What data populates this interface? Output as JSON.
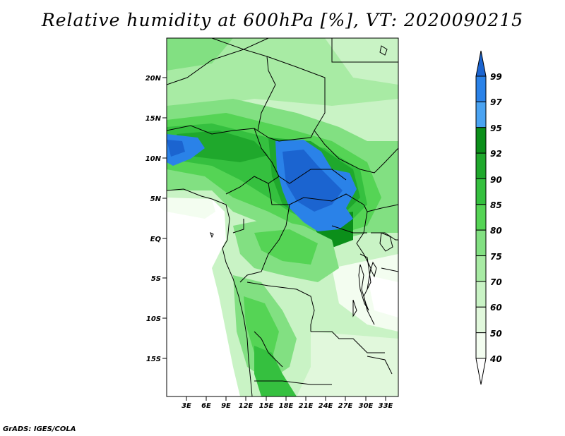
{
  "title": "Relative humidity at 600hPa [%], VT: 2020090215",
  "credit": "GrADS: IGES/COLA",
  "map": {
    "lat_labels": [
      "20N",
      "15N",
      "10N",
      "5N",
      "EQ",
      "5S",
      "10S",
      "15S"
    ],
    "lon_labels": [
      "3E",
      "6E",
      "9E",
      "12E",
      "15E",
      "18E",
      "21E",
      "24E",
      "27E",
      "30E",
      "33E"
    ]
  },
  "colorbar": {
    "levels": [
      "99",
      "97",
      "95",
      "92",
      "90",
      "85",
      "80",
      "75",
      "70",
      "60",
      "50",
      "40"
    ],
    "colors": [
      "#1b64d0",
      "#2a82e8",
      "#4aa3f2",
      "#0b8f1a",
      "#1fa82c",
      "#35c03f",
      "#55d455",
      "#82e082",
      "#a8eba4",
      "#c9f3c5",
      "#e1f8dc",
      "#f3fdf0"
    ]
  }
}
